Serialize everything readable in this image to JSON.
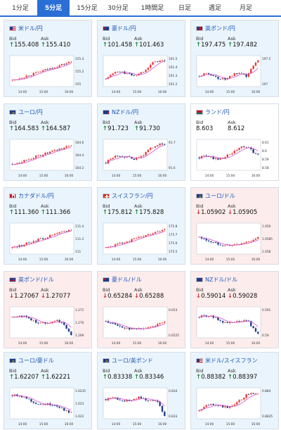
{
  "tabs": [
    {
      "label": "1分足",
      "active": false
    },
    {
      "label": "5分足",
      "active": true
    },
    {
      "label": "15分足",
      "active": false
    },
    {
      "label": "30分足",
      "active": false
    },
    {
      "label": "1時間足",
      "active": false
    },
    {
      "label": "日足",
      "active": false
    },
    {
      "label": "週足",
      "active": false
    },
    {
      "label": "月足",
      "active": false
    }
  ],
  "labels": {
    "bid": "Bid",
    "ask": "Ask"
  },
  "colors": {
    "up": "#e53935",
    "down": "#1e3a8a",
    "ma": "#d24fd0",
    "up_arrow": "#1f8f3a",
    "down_arrow": "#d32f2f"
  },
  "cards": [
    {
      "name": "米ドル/円",
      "flag": "us-flag-icon",
      "trend": "up",
      "bid": "155.408",
      "ask": "155.410",
      "times": [
        "14:00",
        "15:00",
        "16:00"
      ],
      "ticks": [
        "155.4",
        "155.2",
        "155"
      ]
    },
    {
      "name": "豪ドル/円",
      "flag": "au-flag-icon",
      "trend": "up",
      "bid": "101.458",
      "ask": "101.463",
      "times": [
        "14:00",
        "15:00",
        "16:00"
      ],
      "ticks": [
        "101.5",
        "101.4",
        "101.3",
        "101.2"
      ]
    },
    {
      "name": "英ポンド/円",
      "flag": "gb-flag-icon",
      "trend": "up",
      "bid": "197.475",
      "ask": "197.482",
      "times": [
        "14:00",
        "15:00",
        "16:00"
      ],
      "ticks": [
        "197.5",
        "197"
      ]
    },
    {
      "name": "ユーロ/円",
      "flag": "eu-flag-icon",
      "trend": "up",
      "bid": "164.583",
      "ask": "164.587",
      "times": [
        "14:00",
        "15:00",
        "16:00"
      ],
      "ticks": [
        "164.6",
        "164.4",
        "164.2"
      ]
    },
    {
      "name": "NZドル/円",
      "flag": "nz-flag-icon",
      "trend": "up",
      "bid": "91.723",
      "ask": "91.730",
      "times": [
        "14:00",
        "15:00",
        "16:00"
      ],
      "ticks": [
        "91.7",
        "91.6"
      ]
    },
    {
      "name": "ランド/円",
      "flag": "za-flag-icon",
      "trend": "none",
      "bid": "8.603",
      "ask": "8.612",
      "times": [
        "14:00",
        "15:00",
        "16:00"
      ],
      "ticks": [
        "8.61",
        "8.6",
        "8.59",
        "8.58"
      ]
    },
    {
      "name": "カナダドル/円",
      "flag": "ca-flag-icon",
      "trend": "up",
      "bid": "111.360",
      "ask": "111.366",
      "times": [
        "14:00",
        "15:00",
        "16:00"
      ],
      "ticks": [
        "111.4",
        "111.2",
        "111"
      ]
    },
    {
      "name": "スイスフラン/円",
      "flag": "ch-flag-icon",
      "trend": "up",
      "bid": "175.812",
      "ask": "175.828",
      "times": [
        "14:00",
        "15:00",
        "16:00"
      ],
      "ticks": [
        "175.8",
        "175.7",
        "175.6",
        "175.5"
      ]
    },
    {
      "name": "ユーロ/ドル",
      "flag": "eu-flag-icon",
      "trend": "down",
      "bid": "1.05902",
      "ask": "1.05905",
      "times": [
        "14:00",
        "15:00",
        "16:00"
      ],
      "ticks": [
        "1.059",
        "1.0585",
        "1.058"
      ]
    },
    {
      "name": "英ポンド/ドル",
      "flag": "gb-flag-icon",
      "trend": "down",
      "bid": "1.27067",
      "ask": "1.27077",
      "times": [
        "14:00",
        "15:00",
        "16:00"
      ],
      "ticks": [
        "1.271",
        "1.270",
        "1.269"
      ]
    },
    {
      "name": "豪ドル/ドル",
      "flag": "au-flag-icon",
      "trend": "down",
      "bid": "0.65284",
      "ask": "0.65288",
      "times": [
        "14:00",
        "15:00",
        "16:00"
      ],
      "ticks": [
        "0.653",
        "0.6525"
      ]
    },
    {
      "name": "NZドル/ドル",
      "flag": "nz-flag-icon",
      "trend": "down",
      "bid": "0.59014",
      "ask": "0.59028",
      "times": [
        "14:00",
        "15:00",
        "16:00"
      ],
      "ticks": [
        "0.591",
        "0.59"
      ]
    },
    {
      "name": "ユーロ/豪ドル",
      "flag": "eu-flag-icon",
      "trend": "up",
      "bid": "1.62207",
      "ask": "1.62221",
      "times": [
        "14:00",
        "15:00",
        "16:00"
      ],
      "ticks": [
        "1.6235",
        "1.623",
        "1.622"
      ]
    },
    {
      "name": "ユーロ/英ポンド",
      "flag": "eu-flag-icon",
      "trend": "up",
      "bid": "0.83338",
      "ask": "0.83346",
      "times": [
        "14:00",
        "15:00",
        "16:00"
      ],
      "ticks": [
        "0.834",
        "0.833"
      ]
    },
    {
      "name": "米ドル/スイスフラン",
      "flag": "us-flag-icon",
      "trend": "up",
      "bid": "0.88382",
      "ask": "0.88397",
      "times": [
        "14:00",
        "15:00",
        "16:00"
      ],
      "ticks": [
        "0.884",
        "0.8835"
      ]
    }
  ]
}
